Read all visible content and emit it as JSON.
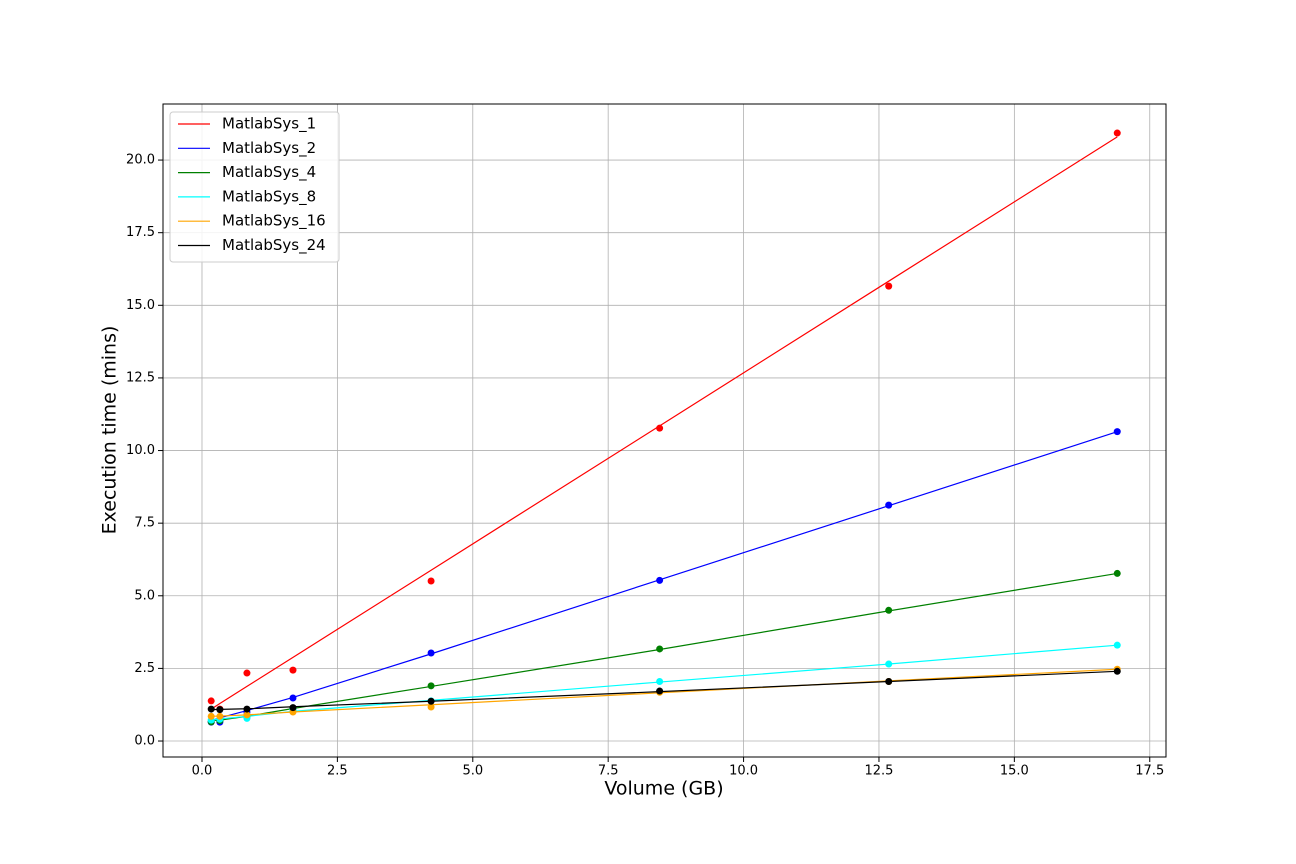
{
  "chart_data": {
    "type": "scatter",
    "xlabel": "Volume (GB)",
    "ylabel": "Execution time (mins)",
    "x": [
      0.17,
      0.33,
      0.83,
      1.68,
      4.23,
      8.45,
      12.68,
      16.9
    ],
    "series": [
      {
        "name": "MatlabSys_1",
        "color": "#ff0000",
        "values": [
          1.38,
          1.1,
          2.34,
          2.44,
          5.51,
          10.77,
          15.66,
          20.93
        ],
        "fit": [
          1.1,
          1.29,
          1.88,
          2.88,
          5.88,
          10.85,
          15.83,
          20.8
        ]
      },
      {
        "name": "MatlabSys_2",
        "color": "#0000ff",
        "values": [
          0.65,
          0.65,
          1.0,
          1.48,
          3.03,
          5.53,
          8.12,
          10.65
        ],
        "fit": [
          0.7,
          0.8,
          1.05,
          1.5,
          3.0,
          5.55,
          8.1,
          10.65
        ]
      },
      {
        "name": "MatlabSys_4",
        "color": "#008000",
        "values": [
          0.66,
          0.7,
          0.85,
          1.1,
          1.9,
          3.17,
          4.5,
          5.77
        ],
        "fit": [
          0.7,
          0.72,
          0.85,
          1.12,
          1.88,
          3.15,
          4.48,
          5.77
        ]
      },
      {
        "name": "MatlabSys_8",
        "color": "#00ffff",
        "values": [
          0.72,
          0.75,
          0.78,
          1.1,
          1.38,
          2.05,
          2.65,
          3.3
        ],
        "fit": [
          0.72,
          0.76,
          0.85,
          1.02,
          1.4,
          2.03,
          2.65,
          3.3
        ]
      },
      {
        "name": "MatlabSys_16",
        "color": "#ffa500",
        "values": [
          0.85,
          0.85,
          0.9,
          1.0,
          1.17,
          1.68,
          2.05,
          2.47
        ],
        "fit": [
          0.85,
          0.86,
          0.9,
          1.0,
          1.25,
          1.66,
          2.07,
          2.47
        ]
      },
      {
        "name": "MatlabSys_24",
        "color": "#000000",
        "values": [
          1.1,
          1.08,
          1.1,
          1.15,
          1.37,
          1.72,
          2.05,
          2.4
        ],
        "fit": [
          1.08,
          1.09,
          1.11,
          1.18,
          1.37,
          1.7,
          2.05,
          2.4
        ]
      }
    ],
    "xlim": [
      -0.72,
      17.8
    ],
    "ylim": [
      -0.55,
      21.93
    ],
    "xticks": [
      {
        "value": 0,
        "label": "0.0"
      },
      {
        "value": 2.5,
        "label": "2.5"
      },
      {
        "value": 5,
        "label": "5.0"
      },
      {
        "value": 7.5,
        "label": "7.5"
      },
      {
        "value": 10,
        "label": "10.0"
      },
      {
        "value": 12.5,
        "label": "12.5"
      },
      {
        "value": 15,
        "label": "15.0"
      },
      {
        "value": 17.5,
        "label": "17.5"
      }
    ],
    "yticks": [
      {
        "value": 0,
        "label": "0.0"
      },
      {
        "value": 2.5,
        "label": "2.5"
      },
      {
        "value": 5,
        "label": "5.0"
      },
      {
        "value": 7.5,
        "label": "7.5"
      },
      {
        "value": 10,
        "label": "10.0"
      },
      {
        "value": 12.5,
        "label": "12.5"
      },
      {
        "value": 15,
        "label": "15.0"
      },
      {
        "value": 17.5,
        "label": "17.5"
      },
      {
        "value": 20,
        "label": "20.0"
      }
    ],
    "grid": true,
    "legend": "upper left"
  }
}
